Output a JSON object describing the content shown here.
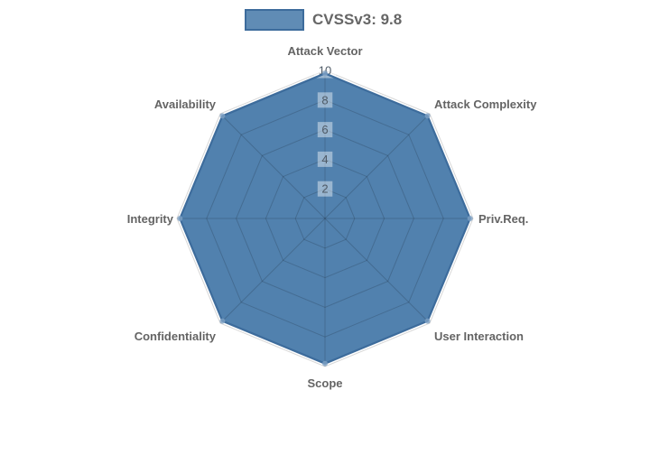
{
  "chart_data": {
    "type": "radar",
    "title": "",
    "categories": [
      "Attack Vector",
      "Attack Complexity",
      "Priv.Req.",
      "User Interaction",
      "Scope",
      "Confidentiality",
      "Integrity",
      "Availability"
    ],
    "series": [
      {
        "name": "CVSSv3: 9.8",
        "values": [
          9.8,
          9.8,
          9.8,
          9.8,
          9.8,
          9.8,
          9.8,
          9.8
        ]
      }
    ],
    "scale": {
      "min": 0,
      "max": 10,
      "tick_step": 2,
      "tick_labels": [
        "2",
        "4",
        "6",
        "8",
        "10"
      ]
    },
    "grid": true,
    "grid_shape": "polygon",
    "legend_position": "top",
    "colors": {
      "series_fill": "#3E73A5",
      "series_fill_opacity": 0.9,
      "series_border": "#3D6C9C",
      "point_fill": "#7FA3C6",
      "grid_line": "rgba(0,0,0,0.16)",
      "tick_backdrop": "rgba(255,255,255,0.42)",
      "tick_text": "#4E5A66",
      "axis_label_text": "#646464",
      "legend_text": "#666666"
    }
  }
}
